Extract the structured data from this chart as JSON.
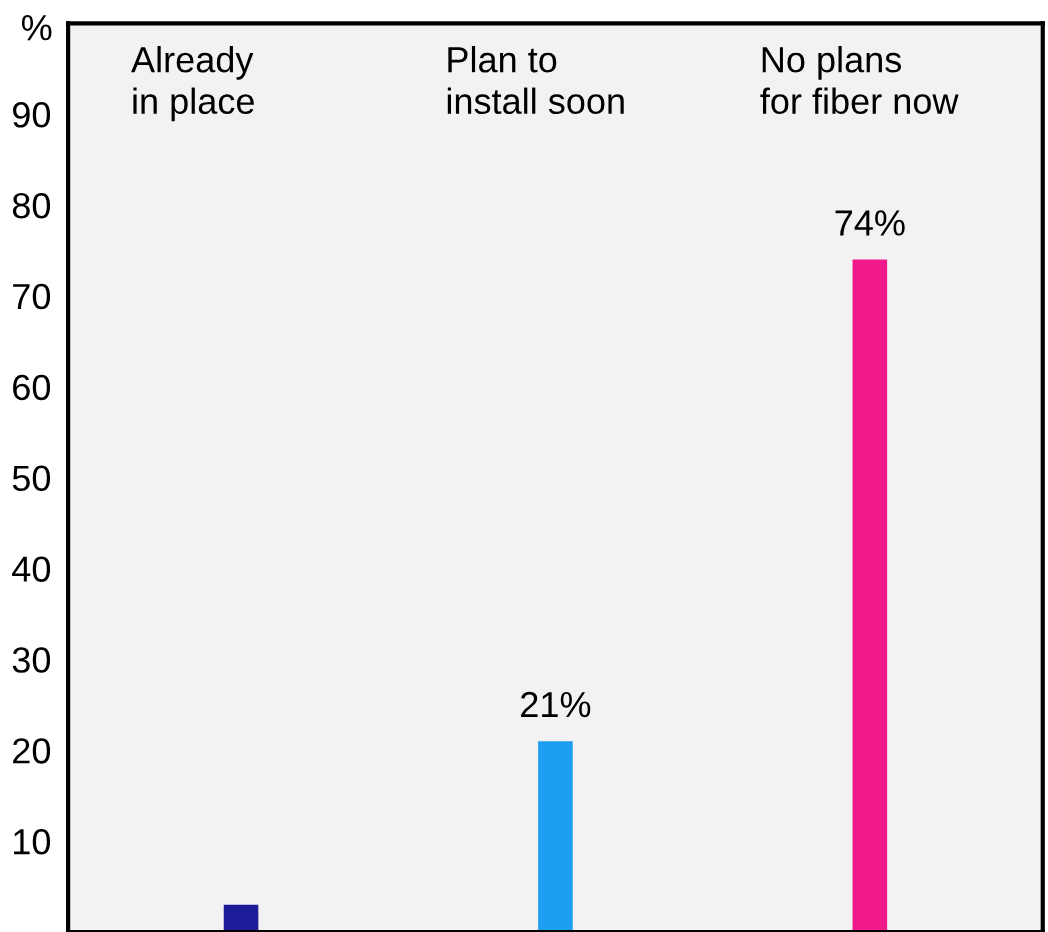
{
  "chart_data": {
    "type": "bar",
    "ylabel": "%",
    "categories": [
      "Already\nin place",
      "Plan to\ninstall soon",
      "No plans\nfor fiber now"
    ],
    "values": [
      3,
      21,
      74
    ],
    "colors": [
      "#1c1c98",
      "#1e9ef0",
      "#f01a8c"
    ],
    "value_labels": [
      null,
      "21%",
      "74%"
    ],
    "ylim": [
      0,
      100
    ],
    "yticks": [
      10,
      20,
      30,
      40,
      50,
      60,
      70,
      80,
      90
    ],
    "grid": false,
    "legend": false
  }
}
